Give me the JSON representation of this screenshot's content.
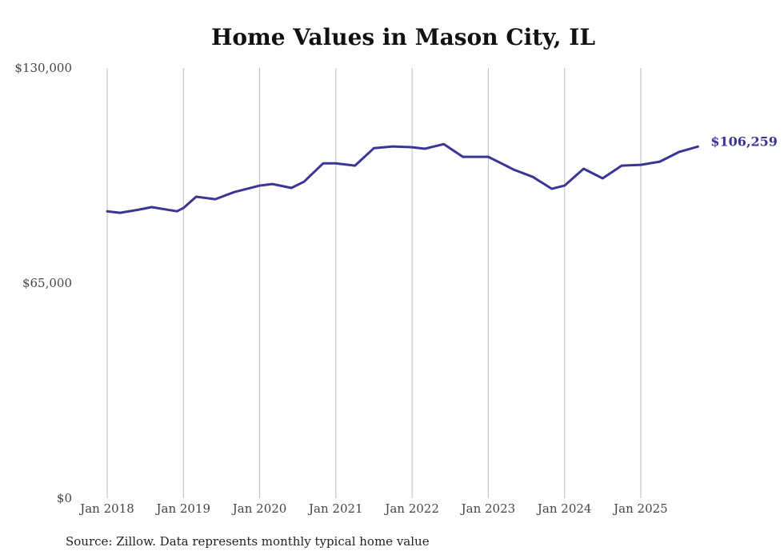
{
  "chart_data": {
    "type": "line",
    "title": "Home Values in Mason City, IL",
    "source": "Source: Zillow. Data represents monthly typical home value",
    "xlabel": "",
    "ylabel": "",
    "ylim": [
      0,
      130000
    ],
    "y_ticks": [
      0,
      65000,
      130000
    ],
    "y_tick_labels": [
      "$0",
      "$65,000",
      "$130,000"
    ],
    "x_ticks": [
      "Jan 2018",
      "Jan 2019",
      "Jan 2020",
      "Jan 2021",
      "Jan 2022",
      "Jan 2023",
      "Jan 2024",
      "Jan 2025"
    ],
    "grid": "vertical",
    "end_label": "$106,259",
    "color": "#3b3596",
    "series": [
      {
        "name": "Typical home value",
        "points": [
          [
            "2018-01",
            86700
          ],
          [
            "2018-03",
            86250
          ],
          [
            "2018-06",
            87200
          ],
          [
            "2018-08",
            87950
          ],
          [
            "2018-12",
            86700
          ],
          [
            "2019-01",
            87700
          ],
          [
            "2019-03",
            91100
          ],
          [
            "2019-06",
            90350
          ],
          [
            "2019-09",
            92500
          ],
          [
            "2020-01",
            94450
          ],
          [
            "2020-03",
            94950
          ],
          [
            "2020-06",
            93750
          ],
          [
            "2020-08",
            95650
          ],
          [
            "2020-11",
            101200
          ],
          [
            "2021-01",
            101200
          ],
          [
            "2021-04",
            100500
          ],
          [
            "2021-07",
            105800
          ],
          [
            "2021-10",
            106300
          ],
          [
            "2022-01",
            106050
          ],
          [
            "2022-03",
            105600
          ],
          [
            "2022-06",
            107000
          ],
          [
            "2022-09",
            103150
          ],
          [
            "2023-01",
            103150
          ],
          [
            "2023-05",
            99300
          ],
          [
            "2023-08",
            97100
          ],
          [
            "2023-11",
            93500
          ],
          [
            "2024-01",
            94450
          ],
          [
            "2024-04",
            99550
          ],
          [
            "2024-07",
            96650
          ],
          [
            "2024-10",
            100500
          ],
          [
            "2025-01",
            100750
          ],
          [
            "2025-04",
            101700
          ],
          [
            "2025-07",
            104600
          ],
          [
            "2025-10",
            106259
          ]
        ]
      }
    ]
  }
}
